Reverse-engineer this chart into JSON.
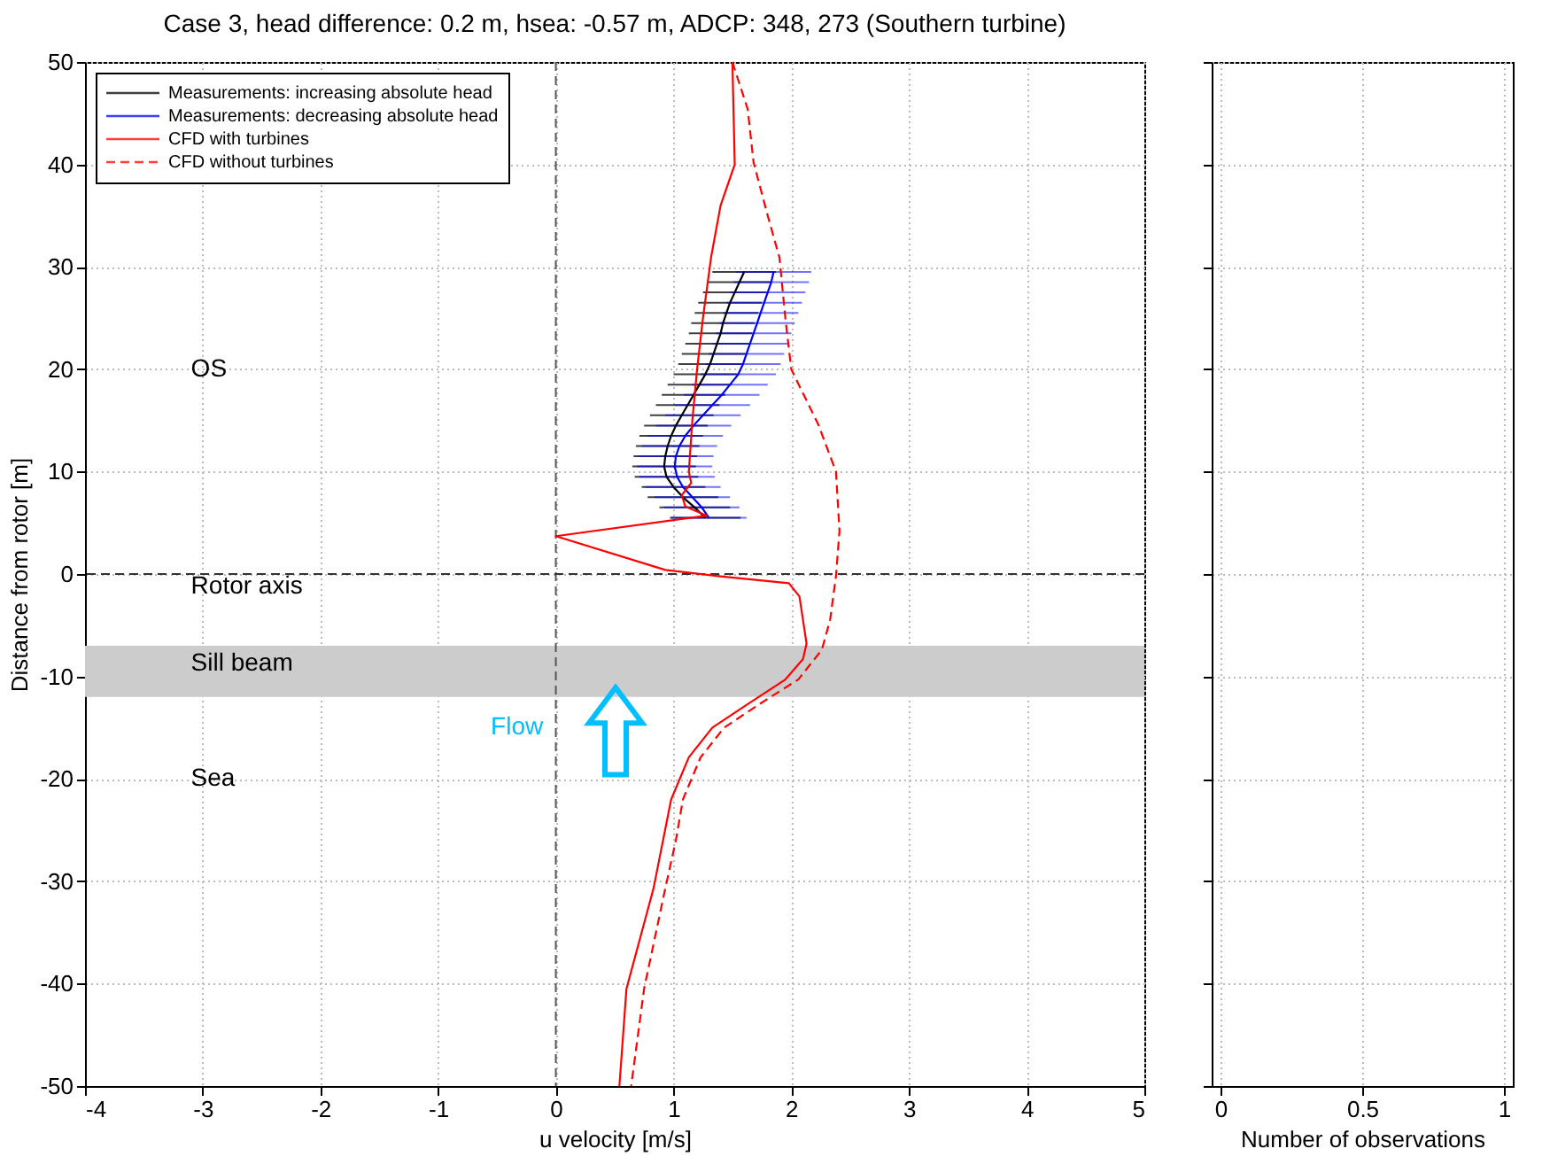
{
  "chart_data": [
    {
      "type": "line",
      "title": "Case 3, head difference: 0.2 m, hsea: -0.57 m, ADCP: 348, 273 (Southern turbine)",
      "xlabel": "u velocity [m/s]",
      "ylabel": "Distance from rotor [m]",
      "xlim": [
        -4,
        5
      ],
      "xticks": [
        -4,
        -3,
        -2,
        -1,
        0,
        1,
        2,
        3,
        4,
        5
      ],
      "ylim": [
        -50,
        50
      ],
      "yticks": [
        -50,
        -40,
        -30,
        -20,
        -10,
        0,
        10,
        20,
        30,
        40,
        50
      ],
      "grid": true,
      "legend": "top left",
      "series": [
        {
          "name": "Measurements: increasing absolute head",
          "color": "#000000",
          "x": [
            1.6,
            1.56,
            1.52,
            1.48,
            1.45,
            1.42,
            1.4,
            1.37,
            1.34,
            1.31,
            1.27,
            1.22,
            1.17,
            1.12,
            1.07,
            1.02,
            0.98,
            0.95,
            0.93,
            0.92,
            0.94,
            1.0,
            1.08,
            1.18,
            1.27
          ],
          "values": [
            29.5,
            28.5,
            27.5,
            26.5,
            25.5,
            24.5,
            23.5,
            22.5,
            21.5,
            20.5,
            19.5,
            18.5,
            17.5,
            16.5,
            15.5,
            14.5,
            13.5,
            12.5,
            11.5,
            10.5,
            9.5,
            8.5,
            7.5,
            6.5,
            5.5
          ],
          "xerrors": [
            0.27,
            0.27,
            0.27,
            0.27,
            0.27,
            0.27,
            0.27,
            0.27,
            0.27,
            0.27,
            0.27,
            0.27,
            0.27,
            0.27,
            0.27,
            0.27,
            0.27,
            0.27,
            0.27,
            0.27,
            0.27,
            0.27,
            0.3,
            0.3,
            0.3
          ]
        },
        {
          "name": "Measurements: decreasing absolute head",
          "color": "#0000ff",
          "x": [
            1.85,
            1.83,
            1.8,
            1.77,
            1.74,
            1.71,
            1.68,
            1.65,
            1.62,
            1.59,
            1.55,
            1.48,
            1.41,
            1.33,
            1.25,
            1.17,
            1.1,
            1.05,
            1.02,
            1.01,
            1.03,
            1.08,
            1.16,
            1.24,
            1.3
          ],
          "values": [
            29.5,
            28.5,
            27.5,
            26.5,
            25.5,
            24.5,
            23.5,
            22.5,
            21.5,
            20.5,
            19.5,
            18.5,
            17.5,
            16.5,
            15.5,
            14.5,
            13.5,
            12.5,
            11.5,
            10.5,
            9.5,
            8.5,
            7.5,
            6.5,
            5.5
          ],
          "xerrors": [
            0.32,
            0.32,
            0.32,
            0.32,
            0.32,
            0.32,
            0.32,
            0.32,
            0.32,
            0.32,
            0.32,
            0.32,
            0.32,
            0.32,
            0.32,
            0.32,
            0.32,
            0.32,
            0.32,
            0.32,
            0.32,
            0.32,
            0.32,
            0.32,
            0.32
          ]
        },
        {
          "name": "CFD with turbines",
          "color": "#ff0000",
          "x": [
            1.5,
            1.51,
            1.52,
            1.4,
            1.32,
            1.25,
            1.2,
            1.16,
            1.13,
            1.15,
            1.07,
            1.1,
            1.28,
            0,
            0.93,
            1.38,
            1.98,
            2.07,
            2.13,
            2.1,
            1.95,
            1.63,
            1.33,
            1.13,
            0.98,
            0.83,
            0.6,
            0.54
          ],
          "values": [
            50,
            45,
            40,
            36,
            31,
            25,
            20,
            15,
            10,
            8.9,
            7.7,
            6.6,
            5.7,
            3.7,
            0.4,
            -0.2,
            -0.9,
            -2.2,
            -6.8,
            -8.3,
            -10.3,
            -12.7,
            -15,
            -17.9,
            -22,
            -30.7,
            -40.5,
            -50
          ]
        },
        {
          "name": "CFD  without turbines",
          "color": "#ff0000",
          "line_style": "dashed",
          "x": [
            1.5,
            1.63,
            1.68,
            1.8,
            1.9,
            1.95,
            2.0,
            2.23,
            2.38,
            2.41,
            2.38,
            2.33,
            2.26,
            2.06,
            1.73,
            1.43,
            1.23,
            1.08,
            1.02,
            0.93,
            0.75,
            0.64
          ],
          "values": [
            50,
            45.4,
            40.2,
            35,
            30.9,
            25,
            20,
            14.6,
            10,
            4.2,
            -0.2,
            -4.5,
            -7.4,
            -10.3,
            -12.7,
            -15,
            -17.9,
            -22,
            -26,
            -30.7,
            -40.5,
            -50
          ]
        }
      ],
      "ref_lines": [
        {
          "axis": "x",
          "value": 0,
          "color": "#555555",
          "line_style": "dashed"
        },
        {
          "axis": "y",
          "value": 0,
          "label": "Rotor axis",
          "color": "#333333",
          "line_style": "dashed"
        }
      ],
      "bands": [
        {
          "axis": "y",
          "from": -7,
          "to": -12,
          "label": "Sill beam",
          "color": "#cccccc"
        }
      ],
      "annotations": [
        "OS",
        "Sea",
        "Flow"
      ]
    },
    {
      "type": "bar",
      "xlabel": "Number of observations",
      "xlim": [
        0,
        1
      ],
      "xticks": [
        0,
        0.5,
        1
      ],
      "ylim": [
        -50,
        50
      ],
      "yticks": [
        -50,
        -40,
        -30,
        -20,
        -10,
        0,
        10,
        20,
        30,
        40,
        50
      ],
      "grid": true,
      "tick_labels": "x"
    }
  ]
}
